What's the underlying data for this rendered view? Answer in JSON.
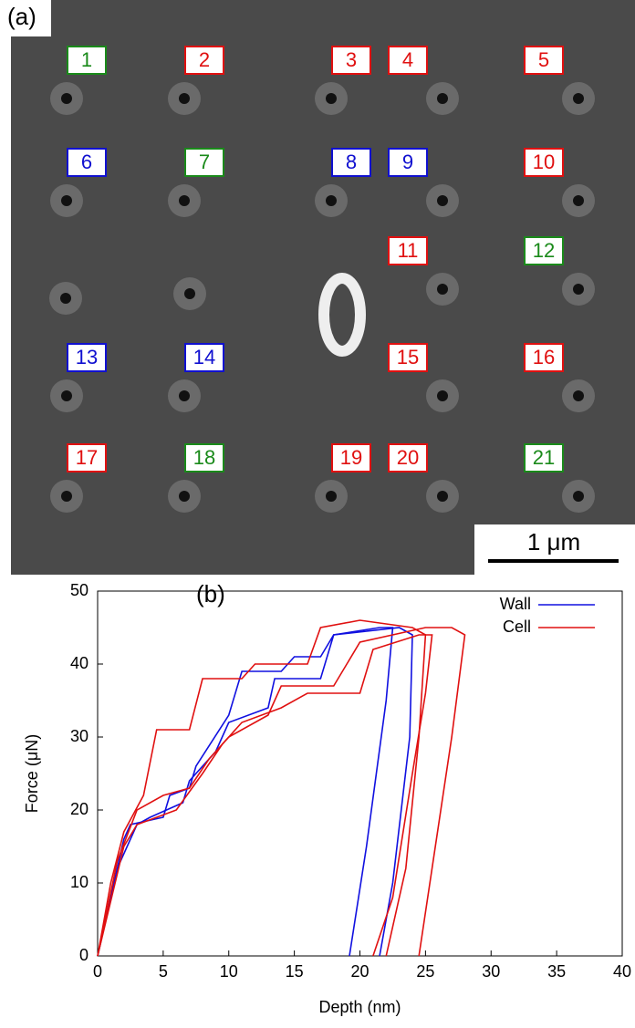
{
  "panel_a": {
    "label": "(a)",
    "scale_bar": "1 μm",
    "markers": [
      {
        "label": "1",
        "color": "#1a8a1a"
      },
      {
        "label": "2",
        "color": "#e01010"
      },
      {
        "label": "3",
        "color": "#e01010"
      },
      {
        "label": "4",
        "color": "#e01010"
      },
      {
        "label": "5",
        "color": "#e01010"
      },
      {
        "label": "6",
        "color": "#1010d0"
      },
      {
        "label": "7",
        "color": "#1a8a1a"
      },
      {
        "label": "8",
        "color": "#1010d0"
      },
      {
        "label": "9",
        "color": "#1010d0"
      },
      {
        "label": "10",
        "color": "#e01010"
      },
      {
        "label": "11",
        "color": "#e01010"
      },
      {
        "label": "12",
        "color": "#1a8a1a"
      },
      {
        "label": "13",
        "color": "#1010d0"
      },
      {
        "label": "14",
        "color": "#1010d0"
      },
      {
        "label": "15",
        "color": "#e01010"
      },
      {
        "label": "16",
        "color": "#e01010"
      },
      {
        "label": "17",
        "color": "#e01010"
      },
      {
        "label": "18",
        "color": "#1a8a1a"
      },
      {
        "label": "19",
        "color": "#e01010"
      },
      {
        "label": "20",
        "color": "#e01010"
      },
      {
        "label": "21",
        "color": "#1a8a1a"
      }
    ]
  },
  "panel_b": {
    "label": "(b)",
    "chart_data": {
      "type": "line",
      "x_label": "Depth (nm)",
      "y_label": "Force (μN)",
      "xlim": [
        0,
        40
      ],
      "ylim": [
        0,
        50
      ],
      "xticks": [
        0,
        5,
        10,
        15,
        20,
        25,
        30,
        35,
        40
      ],
      "yticks": [
        0,
        10,
        20,
        30,
        40,
        50
      ],
      "legend": "upper right",
      "series": [
        {
          "name": "Wall",
          "color": "#1010e0",
          "curves": [
            {
              "x": [
                0,
                1,
                2,
                2.5,
                5,
                5.5,
                7,
                7.5,
                10,
                11,
                14,
                15,
                17,
                18,
                21.5,
                22.5,
                22,
                20.5,
                19.2
              ],
              "values": [
                0,
                8,
                16,
                18,
                19,
                22,
                23,
                26,
                33,
                39,
                39,
                41,
                41,
                44,
                45,
                45,
                35,
                15,
                0
              ]
            },
            {
              "x": [
                0,
                1.5,
                3,
                4,
                6.5,
                7,
                9,
                10,
                13,
                13.5,
                17,
                18,
                23,
                24,
                23.8,
                22.5,
                21.5
              ],
              "values": [
                0,
                12,
                18,
                19,
                21,
                24,
                28,
                32,
                34,
                38,
                38,
                44,
                45,
                44,
                30,
                10,
                0
              ]
            }
          ]
        },
        {
          "name": "Cell",
          "color": "#e01010",
          "curves": [
            {
              "x": [
                0,
                1,
                2,
                3.5,
                4.5,
                7,
                8,
                11,
                12,
                16,
                17,
                20,
                24,
                25,
                24.5,
                23.5,
                22
              ],
              "values": [
                0,
                10,
                17,
                22,
                31,
                31,
                38,
                38,
                40,
                40,
                45,
                46,
                45,
                44,
                30,
                12,
                0
              ]
            },
            {
              "x": [
                0,
                1.5,
                3,
                5,
                7,
                8.5,
                10,
                13,
                14,
                18,
                20,
                25,
                27,
                28,
                27,
                25.5,
                24.5
              ],
              "values": [
                0,
                13,
                20,
                22,
                23,
                27,
                30,
                33,
                37,
                37,
                43,
                45,
                45,
                44,
                30,
                12,
                0
              ]
            },
            {
              "x": [
                0,
                2,
                3,
                6,
                8,
                9.5,
                11,
                14,
                16,
                20,
                21,
                24.5,
                25.5,
                25,
                24,
                22.5,
                21
              ],
              "values": [
                0,
                15,
                18,
                20,
                25,
                29,
                32,
                34,
                36,
                36,
                42,
                44,
                44,
                36,
                25,
                8,
                0
              ]
            }
          ]
        }
      ]
    }
  }
}
